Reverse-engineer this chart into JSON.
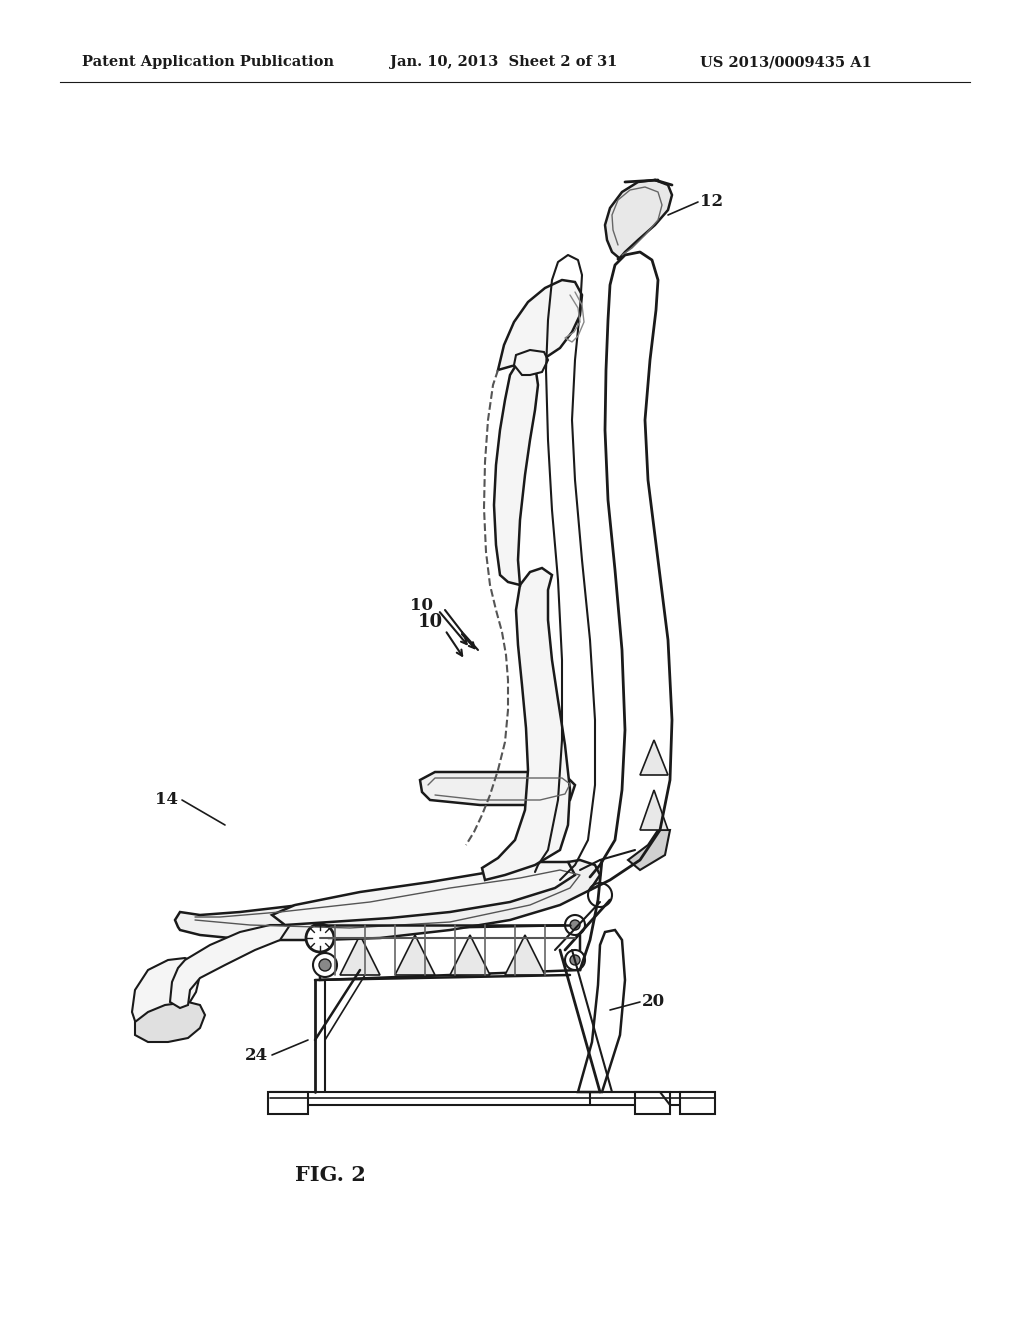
{
  "bg_color": "#ffffff",
  "line_color": "#1a1a1a",
  "header_left": "Patent Application Publication",
  "header_center": "Jan. 10, 2013  Sheet 2 of 31",
  "header_right": "US 2013/0009435 A1",
  "fig_label": "FIG. 2",
  "label_10": "10",
  "label_12": "12",
  "label_14": "14",
  "label_20": "20",
  "label_24": "24",
  "header_fontsize": 11,
  "fig_label_fontsize": 16,
  "callout_fontsize": 13
}
